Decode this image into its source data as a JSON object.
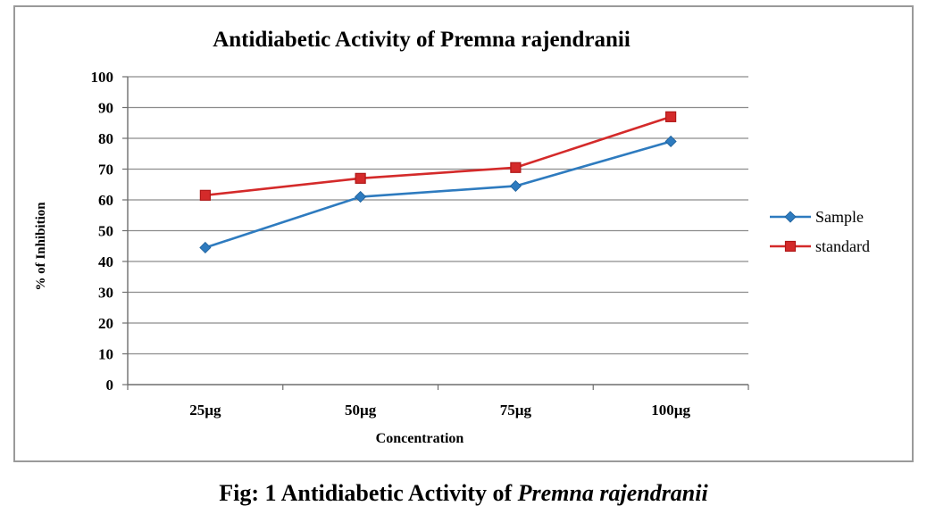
{
  "chart_data": {
    "type": "line",
    "title": "Antidiabetic Activity of Premna rajendranii",
    "xlabel": "Concentration",
    "ylabel": "% of Inhibition",
    "categories": [
      "25µg",
      "50µg",
      "75µg",
      "100µg"
    ],
    "ylim": [
      0,
      100
    ],
    "yticks": [
      0,
      10,
      20,
      30,
      40,
      50,
      60,
      70,
      80,
      90,
      100
    ],
    "grid": true,
    "legend": "right",
    "series": [
      {
        "name": "Sample",
        "values": [
          44.5,
          61,
          64.5,
          79
        ],
        "color": "#2e7bbf",
        "marker": "diamond"
      },
      {
        "name": "standard",
        "values": [
          61.5,
          67,
          70.5,
          87
        ],
        "color": "#d42a2a",
        "marker": "square"
      }
    ]
  },
  "caption": {
    "prefix": "Fig: 1 Antidiabetic  Activity of ",
    "species": "Premna rajendranii"
  }
}
